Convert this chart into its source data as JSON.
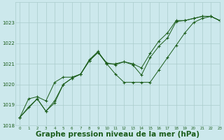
{
  "bg_color": "#cce8ec",
  "grid_color": "#aacccc",
  "line_color": "#1a5c1a",
  "xlabel": "Graphe pression niveau de la mer (hPa)",
  "xlabel_fontsize": 7.5,
  "ylim": [
    1018,
    1024
  ],
  "xlim": [
    -0.5,
    23
  ],
  "yticks": [
    1018,
    1019,
    1020,
    1021,
    1022,
    1023
  ],
  "xticks": [
    0,
    1,
    2,
    3,
    4,
    5,
    6,
    7,
    8,
    9,
    10,
    11,
    12,
    13,
    14,
    15,
    16,
    17,
    18,
    19,
    20,
    21,
    22,
    23
  ],
  "series": [
    {
      "x": [
        0,
        1,
        2,
        3,
        4,
        5,
        6,
        7,
        8,
        9,
        10,
        11,
        12,
        13,
        14,
        15,
        16,
        17,
        18,
        19,
        20,
        21,
        22,
        23
      ],
      "y": [
        1018.4,
        1018.9,
        1019.3,
        1018.7,
        1019.2,
        1020.0,
        1020.3,
        1020.5,
        1021.2,
        1021.6,
        1021.0,
        1021.0,
        1021.1,
        1021.0,
        1020.8,
        1021.5,
        1022.1,
        1022.5,
        1023.1,
        1023.1,
        1023.2,
        1023.3,
        1023.3,
        1023.1
      ]
    },
    {
      "x": [
        0,
        2,
        3,
        4,
        5,
        6,
        7,
        8,
        9,
        10,
        11,
        12,
        13,
        14,
        15,
        16,
        17,
        18,
        19,
        20,
        21,
        22,
        23
      ],
      "y": [
        1018.4,
        1019.3,
        1018.7,
        1019.1,
        1020.0,
        1020.3,
        1020.5,
        1021.15,
        1021.55,
        1021.0,
        1020.5,
        1020.1,
        1020.1,
        1020.1,
        1020.1,
        1020.7,
        1021.3,
        1021.9,
        1022.5,
        1023.0,
        1023.2,
        1023.3,
        1023.1
      ]
    },
    {
      "x": [
        0,
        1,
        2,
        3,
        4,
        5,
        6,
        7,
        8,
        9,
        10,
        11,
        12,
        13,
        14,
        15,
        16,
        17,
        18,
        19,
        20,
        21,
        22,
        23
      ],
      "y": [
        1018.4,
        1019.3,
        1019.4,
        1019.2,
        1020.1,
        1020.35,
        1020.35,
        1020.5,
        1021.15,
        1021.55,
        1021.05,
        1020.95,
        1021.1,
        1020.95,
        1020.45,
        1021.3,
        1021.85,
        1022.25,
        1023.05,
        1023.1,
        1023.2,
        1023.3,
        1023.3,
        1023.1
      ]
    }
  ]
}
